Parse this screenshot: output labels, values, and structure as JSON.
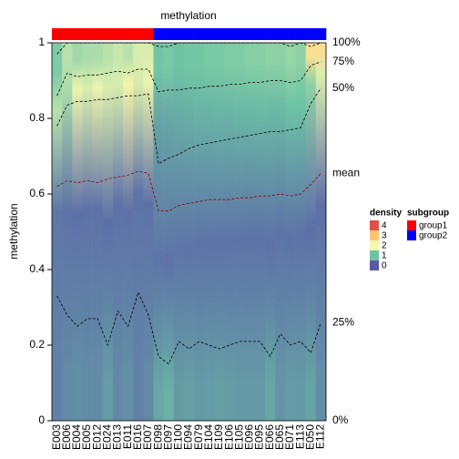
{
  "chart_data": {
    "type": "density_heatmap",
    "title": "methylation",
    "y_label": "methylation",
    "categories": [
      "E003",
      "E006",
      "E004",
      "E005",
      "E012",
      "E024",
      "E013",
      "E011",
      "E016",
      "E007",
      "E098",
      "E097",
      "E100",
      "E094",
      "E079",
      "E104",
      "E109",
      "E106",
      "E105",
      "E096",
      "E095",
      "E066",
      "E065",
      "E071",
      "E113",
      "E050",
      "E112"
    ],
    "groups": [
      "group1",
      "group1",
      "group1",
      "group1",
      "group1",
      "group1",
      "group1",
      "group1",
      "group1",
      "group1",
      "group2",
      "group2",
      "group2",
      "group2",
      "group2",
      "group2",
      "group2",
      "group2",
      "group2",
      "group2",
      "group2",
      "group2",
      "group2",
      "group2",
      "group2",
      "group2",
      "group2"
    ],
    "ylim": [
      0,
      1
    ],
    "yticks": [
      0,
      0.2,
      0.4,
      0.6,
      0.8,
      1
    ],
    "series": [
      {
        "name": "100%",
        "color": "#000000",
        "values": [
          0.97,
          1,
          1,
          1,
          1,
          1,
          1,
          1,
          1,
          1,
          0.99,
          0.99,
          1,
          1,
          1,
          1,
          1,
          1,
          1,
          1,
          1,
          1,
          1,
          0.99,
          1,
          0.99,
          1
        ]
      },
      {
        "name": "75%",
        "color": "#000000",
        "values": [
          0.86,
          0.92,
          0.91,
          0.915,
          0.915,
          0.92,
          0.925,
          0.92,
          0.93,
          0.93,
          0.87,
          0.875,
          0.875,
          0.88,
          0.88,
          0.885,
          0.885,
          0.89,
          0.89,
          0.895,
          0.895,
          0.9,
          0.9,
          0.895,
          0.9,
          0.94,
          0.95
        ]
      },
      {
        "name": "50%",
        "color": "#000000",
        "values": [
          0.78,
          0.835,
          0.845,
          0.845,
          0.85,
          0.85,
          0.855,
          0.86,
          0.86,
          0.865,
          0.68,
          0.695,
          0.705,
          0.72,
          0.73,
          0.735,
          0.74,
          0.745,
          0.75,
          0.755,
          0.76,
          0.765,
          0.765,
          0.77,
          0.775,
          0.84,
          0.88
        ]
      },
      {
        "name": "mean",
        "color": "#8B0000",
        "values": [
          0.62,
          0.635,
          0.63,
          0.635,
          0.63,
          0.64,
          0.645,
          0.65,
          0.66,
          0.655,
          0.555,
          0.555,
          0.57,
          0.575,
          0.58,
          0.585,
          0.585,
          0.585,
          0.59,
          0.59,
          0.595,
          0.595,
          0.6,
          0.595,
          0.6,
          0.625,
          0.655
        ]
      },
      {
        "name": "25%",
        "color": "#000000",
        "values": [
          0.33,
          0.28,
          0.25,
          0.27,
          0.27,
          0.2,
          0.29,
          0.25,
          0.34,
          0.28,
          0.17,
          0.15,
          0.21,
          0.19,
          0.21,
          0.2,
          0.19,
          0.2,
          0.21,
          0.21,
          0.21,
          0.17,
          0.23,
          0.2,
          0.21,
          0.18,
          0.26
        ]
      },
      {
        "name": "0%",
        "color": "#000000",
        "values": [
          0,
          0,
          0,
          0,
          0,
          0,
          0,
          0,
          0,
          0,
          0,
          0,
          0,
          0,
          0,
          0,
          0,
          0,
          0,
          0,
          0,
          0,
          0,
          0,
          0,
          0,
          0
        ]
      }
    ],
    "density_legend": {
      "title": "density",
      "labels": [
        4,
        3,
        2,
        1,
        0
      ],
      "colors": [
        "#E0504A",
        "#FDC675",
        "#F5F8B0",
        "#6CC4A4",
        "#5A5AA8"
      ]
    },
    "subgroup_legend": {
      "title": "subgroup",
      "labels": [
        "group1",
        "group2"
      ],
      "colors": [
        "#FF0000",
        "#0000FF"
      ]
    }
  }
}
